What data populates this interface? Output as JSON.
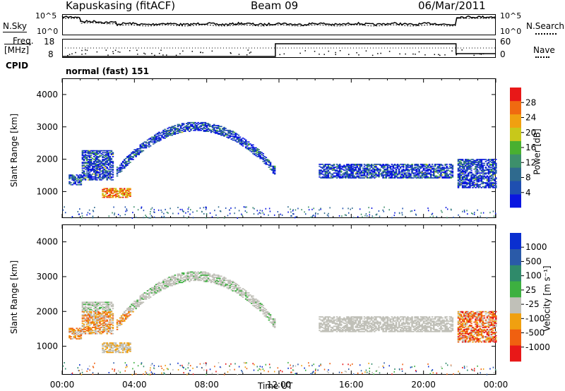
{
  "header": {
    "station": "Kapuskasing (fitACF)",
    "beam": "Beam 09",
    "date": "06/Mar/2011"
  },
  "summary": {
    "nsky_label": "N.Sky",
    "nsearch_label": "N.Search",
    "freq_label_line1": "Freq.",
    "freq_label_line2": "[MHz]",
    "nave_label": "Nave",
    "cpid_label": "CPID",
    "cpid_value": "normal (fast) 151",
    "noise_ticks": [
      "10^5",
      "10^0"
    ],
    "freq_ticks": [
      "18",
      "8"
    ],
    "nave_ticks": [
      "60",
      "0"
    ]
  },
  "chart_data": [
    {
      "type": "heatmap",
      "panel": "power",
      "ylabel": "Slant Range [km]",
      "ylim": [
        180,
        4500
      ],
      "yticks": [
        1000,
        2000,
        3000,
        4000
      ],
      "xlim": [
        0,
        24
      ],
      "colorbar_label": "Power [dB]",
      "colorbar_ticks": [
        "4",
        "8",
        "12",
        "16",
        "20",
        "24",
        "28"
      ],
      "colorbar_range": [
        0,
        30
      ],
      "colors": [
        "#0a16e0",
        "#1f4fb0",
        "#2f6a8e",
        "#3d8f6b",
        "#49b030",
        "#c8c81a",
        "#f0a010",
        "#f06a10",
        "#e81818"
      ],
      "bands": [
        {
          "t_start": 0.3,
          "t_end": 1.0,
          "r_start": 1200,
          "r_end": 1500
        },
        {
          "t_start": 1.0,
          "t_end": 2.8,
          "r_start": 1350,
          "r_end": 2250
        },
        {
          "t_start": 2.2,
          "t_end": 3.8,
          "r_start": 800,
          "r_end": 1100
        },
        {
          "t_start": 3.0,
          "t_end": 11.8,
          "r_start": 1500,
          "r_end": 3100,
          "note": "arc"
        },
        {
          "t_start": 14.2,
          "t_end": 21.6,
          "r_start": 1400,
          "r_end": 1850
        },
        {
          "t_start": 21.8,
          "t_end": 24.0,
          "r_start": 1100,
          "r_end": 2000
        }
      ]
    },
    {
      "type": "heatmap",
      "panel": "velocity",
      "ylabel": "Slant Range [km]",
      "ylim": [
        180,
        4500
      ],
      "yticks": [
        1000,
        2000,
        3000,
        4000
      ],
      "xlim": [
        0,
        24
      ],
      "xlabel": "Time UT",
      "xticks": [
        "00:00",
        "04:00",
        "08:00",
        "12:00",
        "16:00",
        "20:00",
        "00:00"
      ],
      "colorbar_label": "Velocity [m s⁻¹]",
      "colorbar_ticks": [
        "1000",
        "500",
        "100",
        "25",
        "-25",
        "-100",
        "-500",
        "-1000"
      ],
      "colors": [
        "#0a2fd0",
        "#2a5aa8",
        "#2f8a6a",
        "#3db040",
        "#c0c0b8",
        "#f0a010",
        "#f06010",
        "#e81818"
      ],
      "ground_scatter_color": "#c0c0b8"
    }
  ]
}
